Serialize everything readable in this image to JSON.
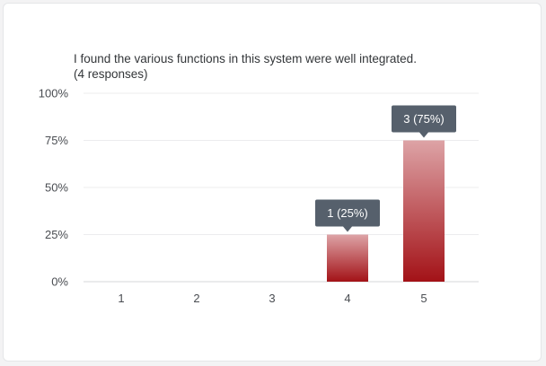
{
  "chart_data": {
    "type": "bar",
    "title": "I found the various functions in this system were well integrated.",
    "subtitle": "(4 responses)",
    "categories": [
      "1",
      "2",
      "3",
      "4",
      "5"
    ],
    "values": [
      0,
      0,
      0,
      25,
      75
    ],
    "counts": [
      0,
      0,
      0,
      1,
      3
    ],
    "data_labels": [
      "",
      "",
      "",
      "1 (25%)",
      "3 (75%)"
    ],
    "y_ticks": [
      "0%",
      "25%",
      "50%",
      "75%",
      "100%"
    ],
    "ylim": [
      0,
      100
    ],
    "grid": true,
    "xlabel": "",
    "ylabel": "",
    "colors": {
      "bar_top": "#dda3a6",
      "bar_bottom": "#a31217",
      "tooltip_bg": "#56606c",
      "grid": "#ececee",
      "axis": "#d6d7da"
    }
  }
}
